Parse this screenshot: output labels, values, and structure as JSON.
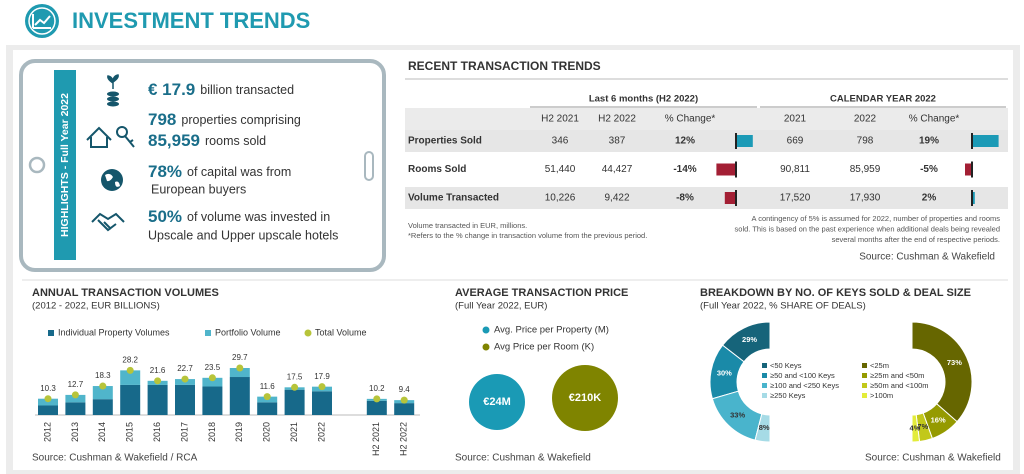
{
  "header": {
    "title": "INVESTMENT TRENDS"
  },
  "highlights": {
    "label": "HIGHLIGHTS - Full Year 2022",
    "items": [
      {
        "figure": "€ 17.9",
        "text": "billion transacted"
      },
      {
        "figure": "798",
        "text": "properties comprising"
      },
      {
        "figure": "85,959",
        "text": "rooms sold"
      },
      {
        "figure": "78%",
        "text": "of capital was from",
        "text2": "European buyers"
      },
      {
        "figure": "50%",
        "text": "of volume was invested in",
        "text2": "Upscale and Upper upscale hotels"
      }
    ]
  },
  "transactions": {
    "title": "RECENT TRANSACTION TRENDS",
    "groups": [
      "Last 6 months (H2 2022)",
      "CALENDAR YEAR 2022"
    ],
    "columns": [
      [
        "H2 2021",
        "H2 2022",
        "% Change*"
      ],
      [
        "2021",
        "2022",
        "% Change*"
      ]
    ],
    "rows": [
      {
        "label": "Properties Sold",
        "cells": [
          [
            "346",
            "387",
            {
              "value": 12,
              "label": "12%"
            }
          ],
          [
            "669",
            "798",
            {
              "value": 19,
              "label": "19%"
            }
          ]
        ]
      },
      {
        "label": "Rooms Sold",
        "cells": [
          [
            "51,440",
            "44,427",
            {
              "value": -14,
              "label": "-14%"
            }
          ],
          [
            "90,811",
            "85,959",
            {
              "value": -5,
              "label": "-5%"
            }
          ]
        ]
      },
      {
        "label": "Volume Transacted",
        "cells": [
          [
            "10,226",
            "9,422",
            {
              "value": -8,
              "label": "-8%"
            }
          ],
          [
            "17,520",
            "17,930",
            {
              "value": 2,
              "label": "2%"
            }
          ]
        ]
      }
    ],
    "notes": [
      "Volume transacted in EUR, millions.",
      "*Refers to the % change in transaction volume from the previous period."
    ],
    "notes_right": [
      "A contingency of 5% is assumed for 2022, number of properties and rooms",
      "sold. This is based on the past experience when additional deals being revealed",
      "several months after the end of respective periods."
    ],
    "source": "Source: Cushman & Wakefield"
  },
  "chart_data": [
    {
      "type": "bar",
      "stacked": true,
      "title": "ANNUAL TRANSACTION VOLUMES",
      "subtitle": "(2012 -  2022, EUR BILLIONS)",
      "source": "Source: Cushman & Wakefield / RCA",
      "categories": [
        "2012",
        "2013",
        "2014",
        "2015",
        "2016",
        "2017",
        "2018",
        "2019",
        "2020",
        "2021",
        "2022",
        null,
        "H2 2021",
        "H2 2022"
      ],
      "series": [
        {
          "name": "Individual Property Volumes",
          "color": "#17698a",
          "values": [
            6,
            8,
            10,
            19,
            19,
            19,
            18,
            24,
            8,
            16,
            15,
            null,
            9,
            7.5
          ]
        },
        {
          "name": "Portfolio Volume",
          "color": "#50b5cb",
          "values": [
            4.3,
            4.7,
            8.3,
            9.2,
            2.6,
            3.7,
            5.5,
            5.7,
            3.6,
            1.5,
            2.9,
            null,
            1.2,
            1.9
          ]
        },
        {
          "name": "Total Volume",
          "color": "#b7c43a",
          "kind": "dot",
          "values": [
            10.3,
            12.7,
            18.3,
            28.2,
            21.6,
            22.7,
            23.5,
            29.7,
            11.6,
            17.5,
            17.9,
            null,
            10.2,
            9.4
          ]
        }
      ]
    },
    {
      "type": "bubble",
      "title": "AVERAGE TRANSACTION PRICE",
      "subtitle": "(Full Year 2022, EUR)",
      "source": "Source: Cushman & Wakefield",
      "series": [
        {
          "name": "Avg. Price per Property (M)",
          "color": "#1a9ab5",
          "values": [
            24
          ],
          "value_labels": [
            "€24M"
          ]
        },
        {
          "name": "Avg Price per Room (K)",
          "color": "#7f8400",
          "values": [
            210
          ],
          "value_labels": [
            "€210K"
          ]
        }
      ]
    },
    {
      "type": "donut",
      "title": "BREAKDOWN BY NO. OF KEYS SOLD & DEAL SIZE",
      "subtitle": "(Full Year 2022, % SHARE OF DEALS)",
      "source": "Source: Cushman & Wakefield",
      "pies": [
        {
          "categories": [
            "<50 Keys",
            "≥50 and <100 Keys",
            "≥100 and <250 Keys",
            "≥250 Keys"
          ],
          "values": [
            29,
            30,
            33,
            8
          ],
          "value_labels": [
            "29%",
            "30%",
            "33%",
            "8%"
          ],
          "colors": [
            "#16647a",
            "#1a8aa8",
            "#49b4cc",
            "#a6dbe6"
          ]
        },
        {
          "categories": [
            "<25m",
            "≥25m and <50m",
            "≥50m and <100m",
            ">100m"
          ],
          "values": [
            73,
            16,
            7,
            4
          ],
          "value_labels": [
            "73%",
            "16%",
            "7%",
            "4%"
          ],
          "colors": [
            "#666600",
            "#959a00",
            "#c2c81a",
            "#e3ec3a"
          ]
        }
      ]
    }
  ]
}
